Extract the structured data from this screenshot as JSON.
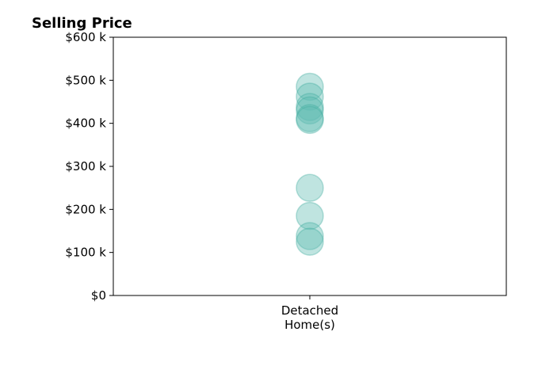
{
  "chart_data": {
    "type": "scatter",
    "title": "Selling Price",
    "xlabel": "",
    "ylabel": "",
    "categories": [
      "Detached\nHome(s)"
    ],
    "ylim": [
      0,
      600000
    ],
    "yticks": [
      0,
      100000,
      200000,
      300000,
      400000,
      500000,
      600000
    ],
    "ytick_labels": [
      "$0",
      "$100 k",
      "$200 k",
      "$300 k",
      "$400 k",
      "$500 k",
      "$600 k"
    ],
    "grid": false,
    "legend": "none",
    "series": [
      {
        "category": "Detached\nHome(s)",
        "values": [
          485000,
          462000,
          438000,
          430000,
          412000,
          408000,
          250000,
          185000,
          138000,
          125000
        ]
      }
    ],
    "colors": {
      "marker_fill": "#5fbcb2",
      "marker_stroke": "#3aa89c",
      "axis": "#000000"
    }
  }
}
